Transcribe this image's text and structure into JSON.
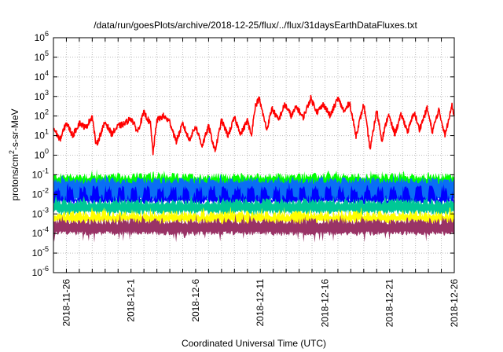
{
  "chart_data": {
    "type": "line",
    "title": "/data/run/goesPlots/archive/2018-12-25/flux/../flux/31daysEarthDataFluxes.txt",
    "xlabel": "Coordinated Universal Time (UTC)",
    "ylabel_main": "protons/cm",
    "ylabel_sup": "2",
    "ylabel_rest": "-s-sr-MeV",
    "x_start": "2018-11-25",
    "x_end": "2018-12-26",
    "xlim_days": [
      0,
      31
    ],
    "x_ticks": [
      {
        "day": 1,
        "label": "2018-11-26"
      },
      {
        "day": 6,
        "label": "2018-12-1"
      },
      {
        "day": 11,
        "label": "2018-12-6"
      },
      {
        "day": 16,
        "label": "2018-12-11"
      },
      {
        "day": 21,
        "label": "2018-12-16"
      },
      {
        "day": 26,
        "label": "2018-12-21"
      },
      {
        "day": 31,
        "label": "2018-12-26"
      }
    ],
    "y_scale": "log",
    "ylim": [
      1e-06,
      1000000.0
    ],
    "y_ticks": [
      {
        "exp": 6,
        "base": "10",
        "sup": "6"
      },
      {
        "exp": 5,
        "base": "10",
        "sup": "5"
      },
      {
        "exp": 4,
        "base": "10",
        "sup": "4"
      },
      {
        "exp": 3,
        "base": "10",
        "sup": "3"
      },
      {
        "exp": 2,
        "base": "10",
        "sup": "2"
      },
      {
        "exp": 1,
        "base": "10",
        "sup": "1"
      },
      {
        "exp": 0,
        "base": "10",
        "sup": "0"
      },
      {
        "exp": -1,
        "base": "10",
        "sup": "-1"
      },
      {
        "exp": -2,
        "base": "10",
        "sup": "-2"
      },
      {
        "exp": -3,
        "base": "10",
        "sup": "-3"
      },
      {
        "exp": -4,
        "base": "10",
        "sup": "-4"
      },
      {
        "exp": -5,
        "base": "10",
        "sup": "-5"
      },
      {
        "exp": -6,
        "base": "10",
        "sup": "-6"
      }
    ],
    "grid": true,
    "line_series": [
      {
        "name": "red-channel",
        "color": "#ff0000",
        "points_day_flux": [
          [
            0,
            25
          ],
          [
            0.5,
            6
          ],
          [
            1,
            45
          ],
          [
            1.5,
            10
          ],
          [
            2,
            45
          ],
          [
            2.5,
            25
          ],
          [
            3,
            100
          ],
          [
            3.3,
            3
          ],
          [
            4,
            50
          ],
          [
            4.5,
            12
          ],
          [
            5,
            30
          ],
          [
            5.5,
            40
          ],
          [
            6,
            80
          ],
          [
            6.5,
            16
          ],
          [
            7,
            150
          ],
          [
            7.5,
            40
          ],
          [
            7.7,
            1.3
          ],
          [
            8,
            60
          ],
          [
            8.5,
            100
          ],
          [
            9,
            50
          ],
          [
            9.5,
            5
          ],
          [
            10,
            40
          ],
          [
            10.5,
            6
          ],
          [
            11,
            30
          ],
          [
            11.5,
            3
          ],
          [
            12,
            30
          ],
          [
            12.5,
            1.6
          ],
          [
            13,
            60
          ],
          [
            13.5,
            10
          ],
          [
            14,
            80
          ],
          [
            14.5,
            12
          ],
          [
            15,
            60
          ],
          [
            15.3,
            10
          ],
          [
            15.6,
            300
          ],
          [
            15.9,
            800
          ],
          [
            16.5,
            20
          ],
          [
            16.9,
            250
          ],
          [
            17.4,
            60
          ],
          [
            17.9,
            400
          ],
          [
            18.4,
            100
          ],
          [
            18.8,
            300
          ],
          [
            19.3,
            80
          ],
          [
            19.9,
            800
          ],
          [
            20.4,
            160
          ],
          [
            20.9,
            400
          ],
          [
            21.4,
            100
          ],
          [
            22,
            800
          ],
          [
            22.5,
            160
          ],
          [
            22.9,
            500
          ],
          [
            23.4,
            10
          ],
          [
            24,
            400
          ],
          [
            24.5,
            2
          ],
          [
            25,
            200
          ],
          [
            25.4,
            6
          ],
          [
            25.9,
            120
          ],
          [
            26.4,
            12
          ],
          [
            26.9,
            120
          ],
          [
            27.4,
            16
          ],
          [
            27.9,
            160
          ],
          [
            28.3,
            20
          ],
          [
            28.9,
            250
          ],
          [
            29.3,
            16
          ],
          [
            29.8,
            200
          ],
          [
            30.3,
            10
          ],
          [
            30.8,
            400
          ],
          [
            31,
            100
          ]
        ]
      }
    ],
    "band_series": [
      {
        "name": "green-channel",
        "color": "#00ff00",
        "top_flux": 0.1,
        "bottom_flux": 0.01
      },
      {
        "name": "light-blue-channel",
        "color": "#0a6ef5",
        "top_flux": 0.06,
        "bottom_flux": 0.005
      },
      {
        "name": "blue-channel",
        "color": "#0000ff",
        "top_flux": 0.02,
        "bottom_flux": 0.004
      },
      {
        "name": "teal-channel",
        "color": "#00c896",
        "top_flux": 0.005,
        "bottom_flux": 0.0012
      },
      {
        "name": "yellow-channel",
        "color": "#ffff00",
        "top_flux": 0.0012,
        "bottom_flux": 0.0004
      },
      {
        "name": "purple-channel",
        "color": "#993366",
        "top_flux": 0.0005,
        "bottom_flux": 0.0001
      }
    ]
  }
}
